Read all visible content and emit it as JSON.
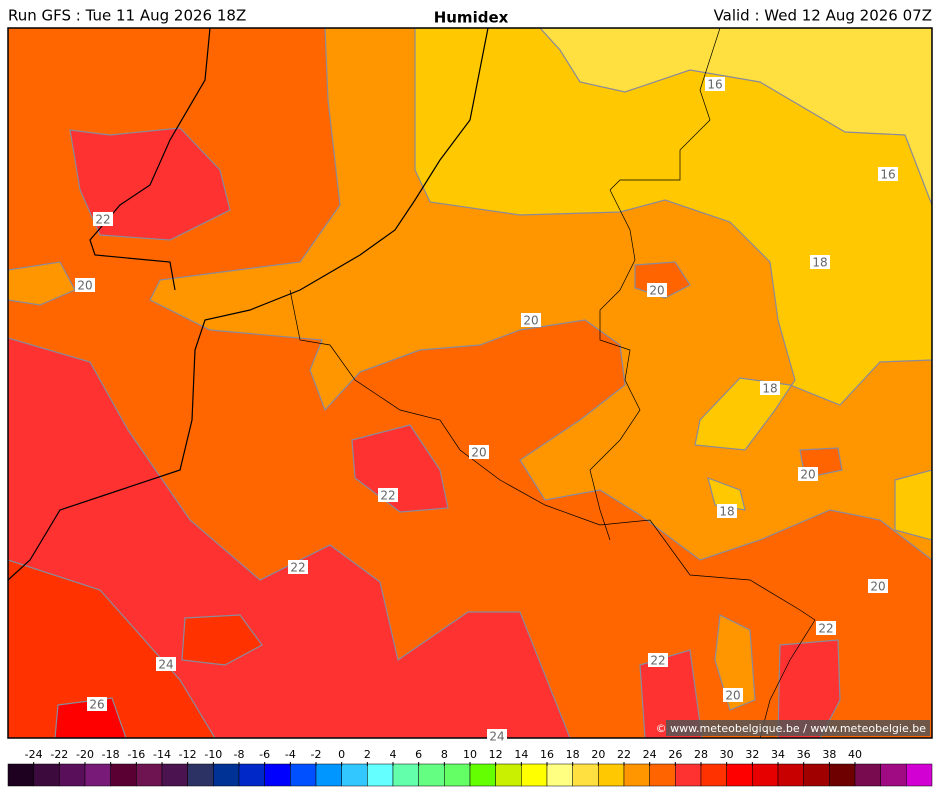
{
  "header": {
    "left": "Run GFS : Tue 11 Aug 2026 18Z",
    "title": "Humidex",
    "right": "Valid : Wed 12 Aug 2026 07Z"
  },
  "contour_labels": [
    16,
    16,
    22,
    18,
    20,
    20,
    20,
    18,
    20,
    20,
    22,
    18,
    22,
    20,
    22,
    24,
    22,
    20,
    26,
    24
  ],
  "watermark": "© www.meteobelgique.be / www.meteobelgie.be",
  "colorbar": {
    "labels": [
      -24,
      -22,
      -20,
      -18,
      -16,
      -14,
      -12,
      -10,
      -8,
      -6,
      -4,
      -2,
      0,
      2,
      4,
      6,
      8,
      10,
      12,
      14,
      16,
      18,
      20,
      22,
      24,
      26,
      28,
      30,
      32,
      34,
      36,
      38,
      40
    ],
    "colors": [
      "#1e0020",
      "#3c0a3c",
      "#5a0f5a",
      "#781a78",
      "#5a0032",
      "#6e1450",
      "#4b1450",
      "#2d3264",
      "#003296",
      "#0028c8",
      "#0000ff",
      "#0050ff",
      "#0096ff",
      "#32c8ff",
      "#64ffff",
      "#64ffaa",
      "#64ff82",
      "#64ff64",
      "#64ff00",
      "#c8f000",
      "#ffff00",
      "#ffff82",
      "#ffe040",
      "#ffc800",
      "#ff9600",
      "#ff6400",
      "#ff3232",
      "#ff3200",
      "#ff0000",
      "#e60000",
      "#c80000",
      "#a00000",
      "#6e0000",
      "#780a50",
      "#a00a82",
      "#d200d2"
    ]
  }
}
